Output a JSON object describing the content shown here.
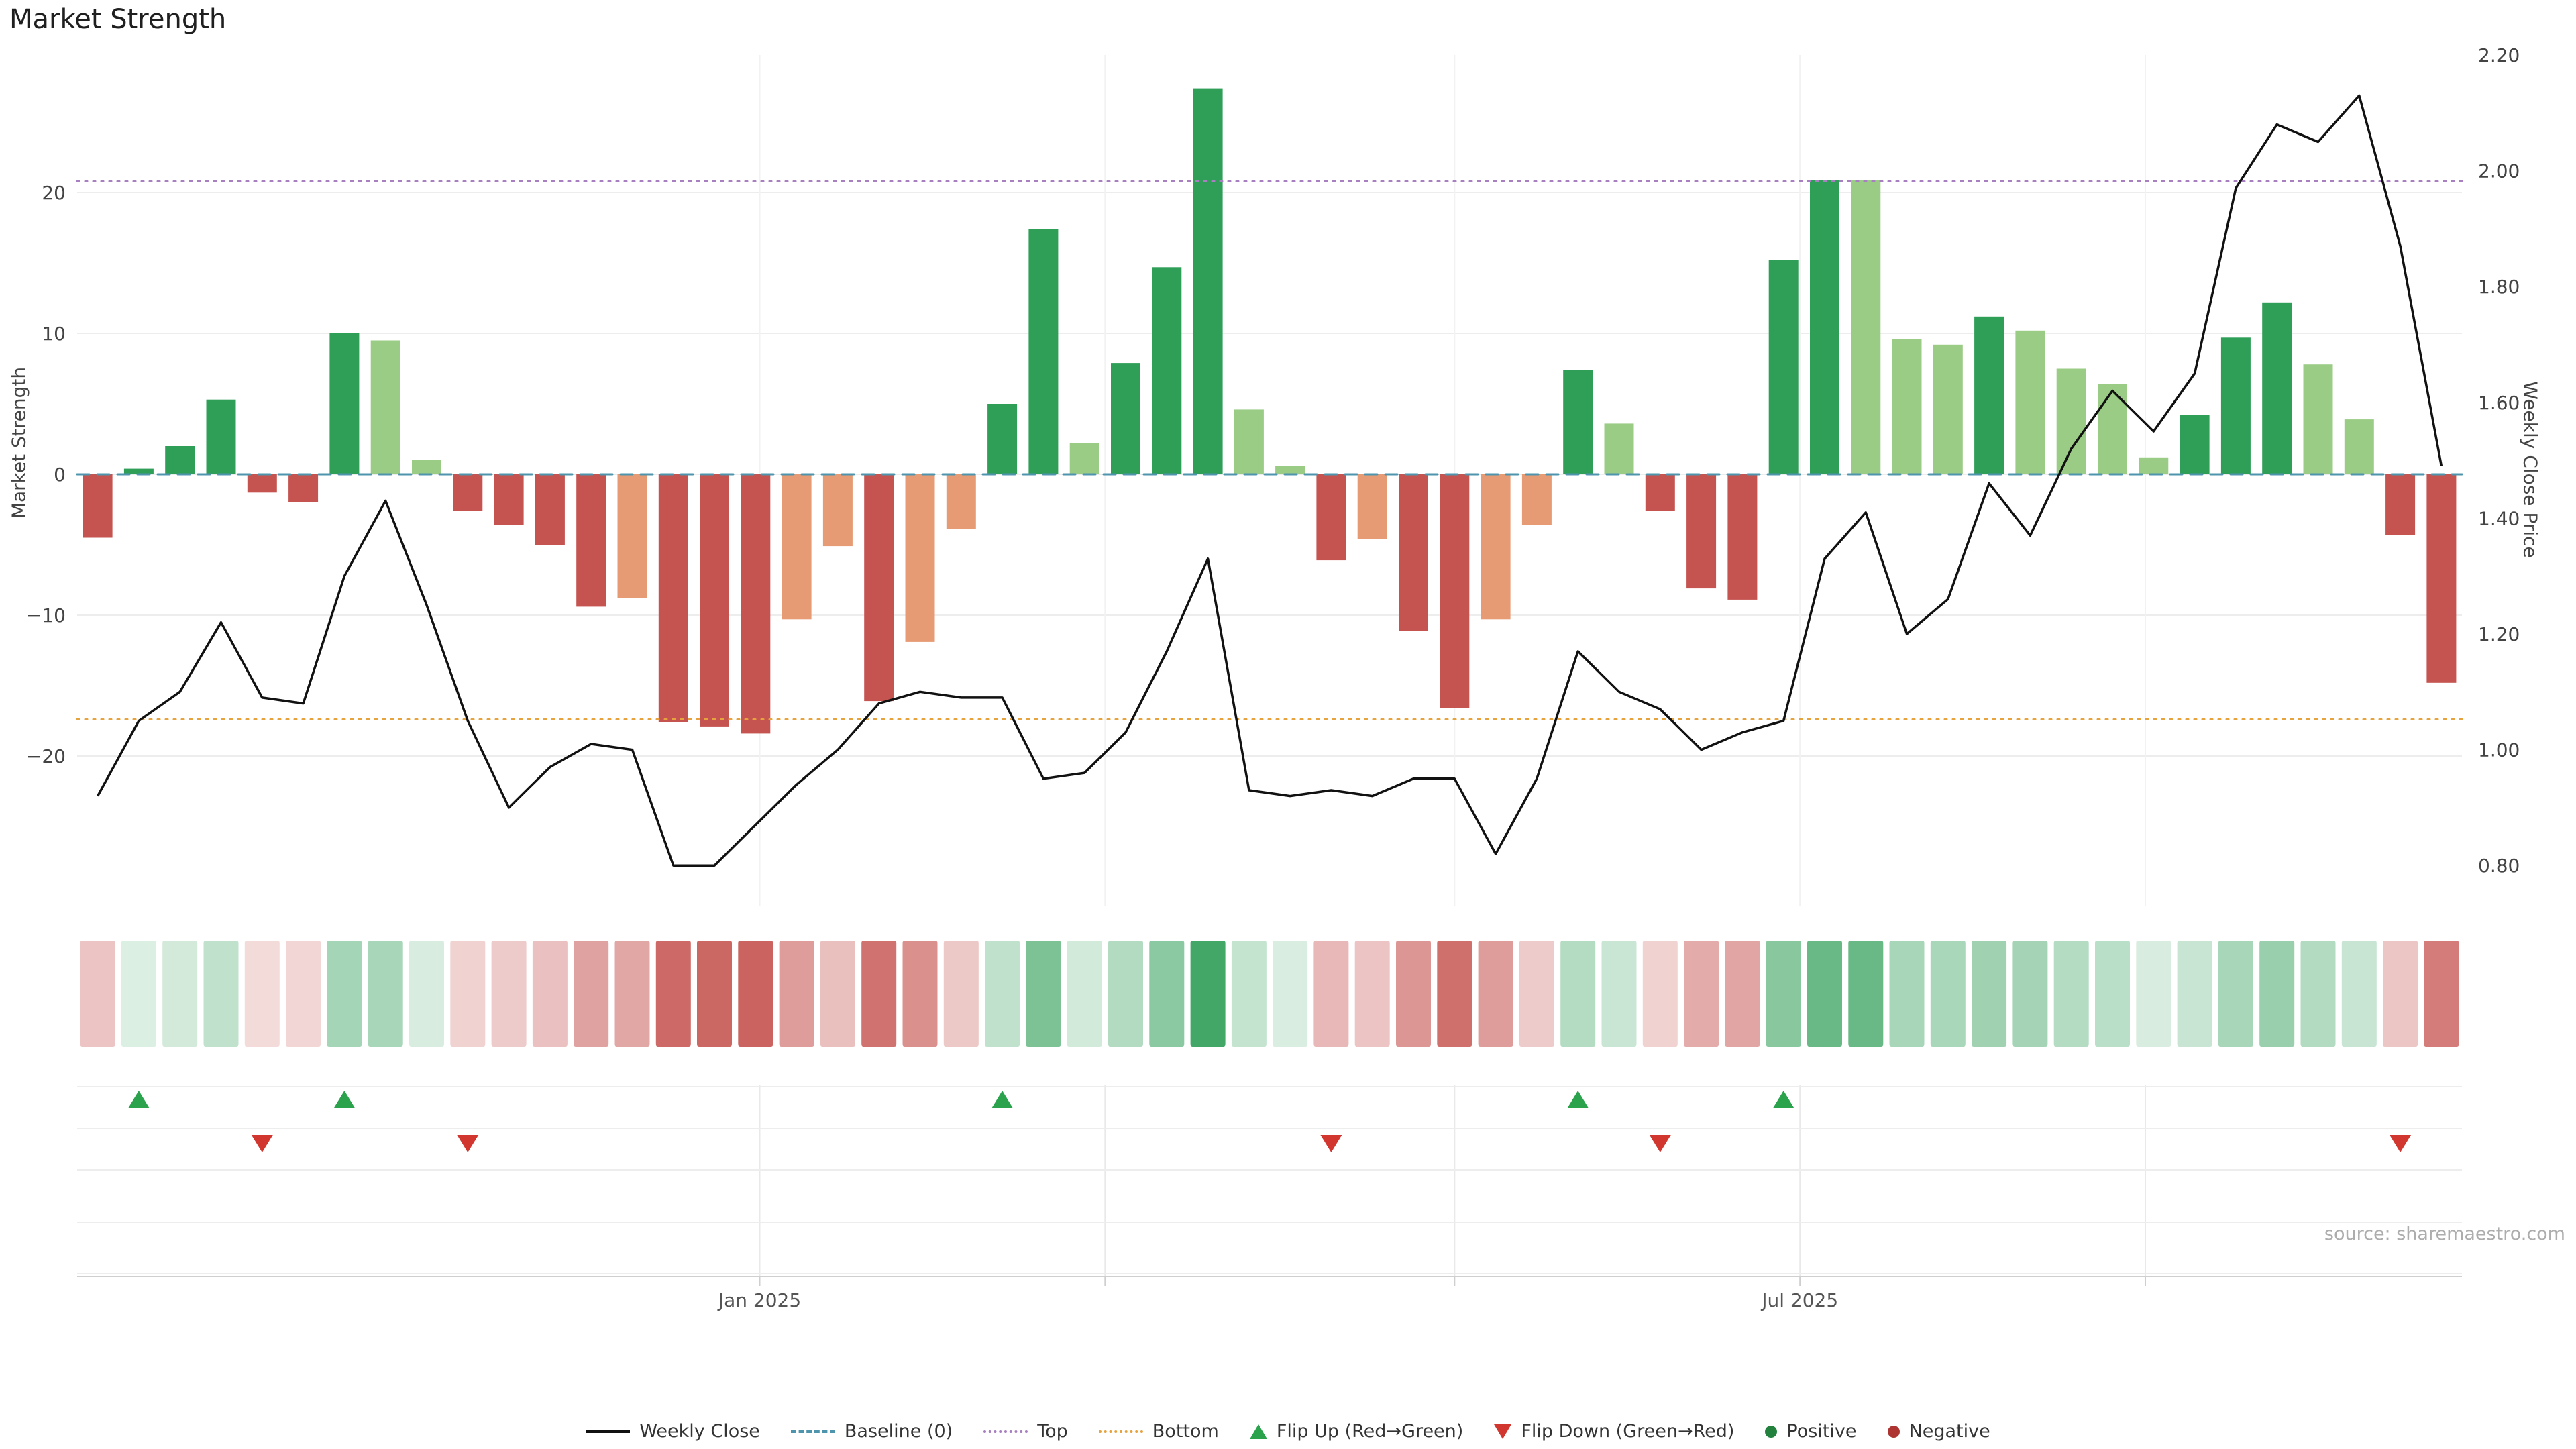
{
  "title": "Market Strength",
  "source_note": "source: sharemaestro.com",
  "colors": {
    "positive_strong": "#2f9e57",
    "positive_weak": "#9bcc86",
    "negative_strong": "#c5534f",
    "negative_weak": "#e79b75",
    "weekly_close_line": "#111111",
    "baseline": "#4e94ad",
    "top_line": "#a87fc0",
    "bottom_line": "#e6a23c",
    "flip_up": "#2ba24c",
    "flip_down": "#d1362f",
    "positive_dot": "#21813d",
    "negative_dot": "#ad3430",
    "heatmap_positive_rgb": "47,158,87",
    "heatmap_negative_rgb": "197,83,79",
    "gridline": "#ededed",
    "gridline_vertical": "#f2f2f2",
    "gridline_lower": "#e9e9e9",
    "axis_line": "#cfcfcf",
    "tick_text": "#444444",
    "x_tick_text": "#555555"
  },
  "chart_data": {
    "type": "bar+line",
    "title": "Market Strength",
    "n_weeks": 58,
    "x_axis": {
      "tick_labels": [
        {
          "label": "Jan 2025",
          "pos": 16.6
        },
        {
          "label": "Jul 2025",
          "pos": 41.9
        }
      ],
      "gridline_positions": [
        16.6,
        25.0,
        33.5,
        41.9,
        50.3
      ]
    },
    "left_axis": {
      "label": "Market Strength",
      "ticks": [
        20,
        10,
        0,
        -10,
        -20
      ],
      "range": [
        -30.6,
        29.8
      ]
    },
    "right_axis": {
      "label": "Weekly Close Price",
      "ticks": [
        2.2,
        2.0,
        1.8,
        1.6,
        1.4,
        1.2,
        1.0,
        0.8
      ],
      "range": [
        0.73,
        2.2
      ]
    },
    "reference_lines": {
      "baseline": 0,
      "top": 20.8,
      "bottom": -17.4
    },
    "series": [
      {
        "name": "Market Strength",
        "type": "bar",
        "axis": "left",
        "values": [
          -4.5,
          0.4,
          2.0,
          5.3,
          -1.3,
          -2.0,
          10.0,
          9.5,
          1.0,
          -2.6,
          -3.6,
          -5.0,
          -9.4,
          -8.8,
          -17.6,
          -17.9,
          -18.4,
          -10.3,
          -5.1,
          -16.1,
          -11.9,
          -3.9,
          5.0,
          17.4,
          2.2,
          7.9,
          14.7,
          27.4,
          4.6,
          0.6,
          -6.1,
          -4.6,
          -11.1,
          -16.6,
          -10.3,
          -3.6,
          7.4,
          3.6,
          -2.6,
          -8.1,
          -8.9,
          15.2,
          20.9,
          20.9,
          9.6,
          9.2,
          11.2,
          10.2,
          7.5,
          6.4,
          1.2,
          4.2,
          9.7,
          12.2,
          7.8,
          3.9,
          -4.3,
          -14.8
        ]
      },
      {
        "name": "Weekly Close",
        "type": "line",
        "axis": "right",
        "values": [
          0.92,
          1.05,
          1.1,
          1.22,
          1.09,
          1.08,
          1.3,
          1.43,
          1.25,
          1.05,
          0.9,
          0.97,
          1.01,
          1.0,
          0.8,
          0.8,
          0.87,
          0.94,
          1.0,
          1.08,
          1.1,
          1.09,
          1.09,
          0.95,
          0.96,
          1.03,
          1.17,
          1.33,
          0.93,
          0.92,
          0.93,
          0.92,
          0.95,
          0.95,
          0.82,
          0.95,
          1.17,
          1.1,
          1.07,
          1.0,
          1.03,
          1.05,
          1.33,
          1.41,
          1.2,
          1.26,
          1.46,
          1.37,
          1.52,
          1.62,
          1.55,
          1.65,
          1.97,
          2.08,
          2.05,
          2.13,
          1.87,
          1.49
        ]
      }
    ],
    "flip_up_weeks": [
      2,
      7,
      23,
      37,
      42
    ],
    "flip_down_weeks": [
      5,
      10,
      31,
      39,
      57
    ],
    "bar_color_rule": "dark green = positive and rising vs prior week, light green = positive and falling, dark red = negative and falling, light salmon = negative and recovering",
    "heatmap": "one cell per week, green/red shade scaled by strength magnitude"
  },
  "legend": {
    "items": [
      {
        "label": "Weekly Close",
        "swatch": "line-solid",
        "color_key": "weekly_close_line"
      },
      {
        "label": "Baseline (0)",
        "swatch": "line-dashed",
        "color_key": "baseline"
      },
      {
        "label": "Top",
        "swatch": "line-dotted",
        "color_key": "top_line"
      },
      {
        "label": "Bottom",
        "swatch": "line-dotted",
        "color_key": "bottom_line"
      },
      {
        "label": "Flip Up (Red→Green)",
        "swatch": "triangle-up",
        "color_key": "flip_up"
      },
      {
        "label": "Flip Down (Green→Red)",
        "swatch": "triangle-down",
        "color_key": "flip_down"
      },
      {
        "label": "Positive",
        "swatch": "dot",
        "color_key": "positive_dot"
      },
      {
        "label": "Negative",
        "swatch": "dot",
        "color_key": "negative_dot"
      }
    ]
  }
}
